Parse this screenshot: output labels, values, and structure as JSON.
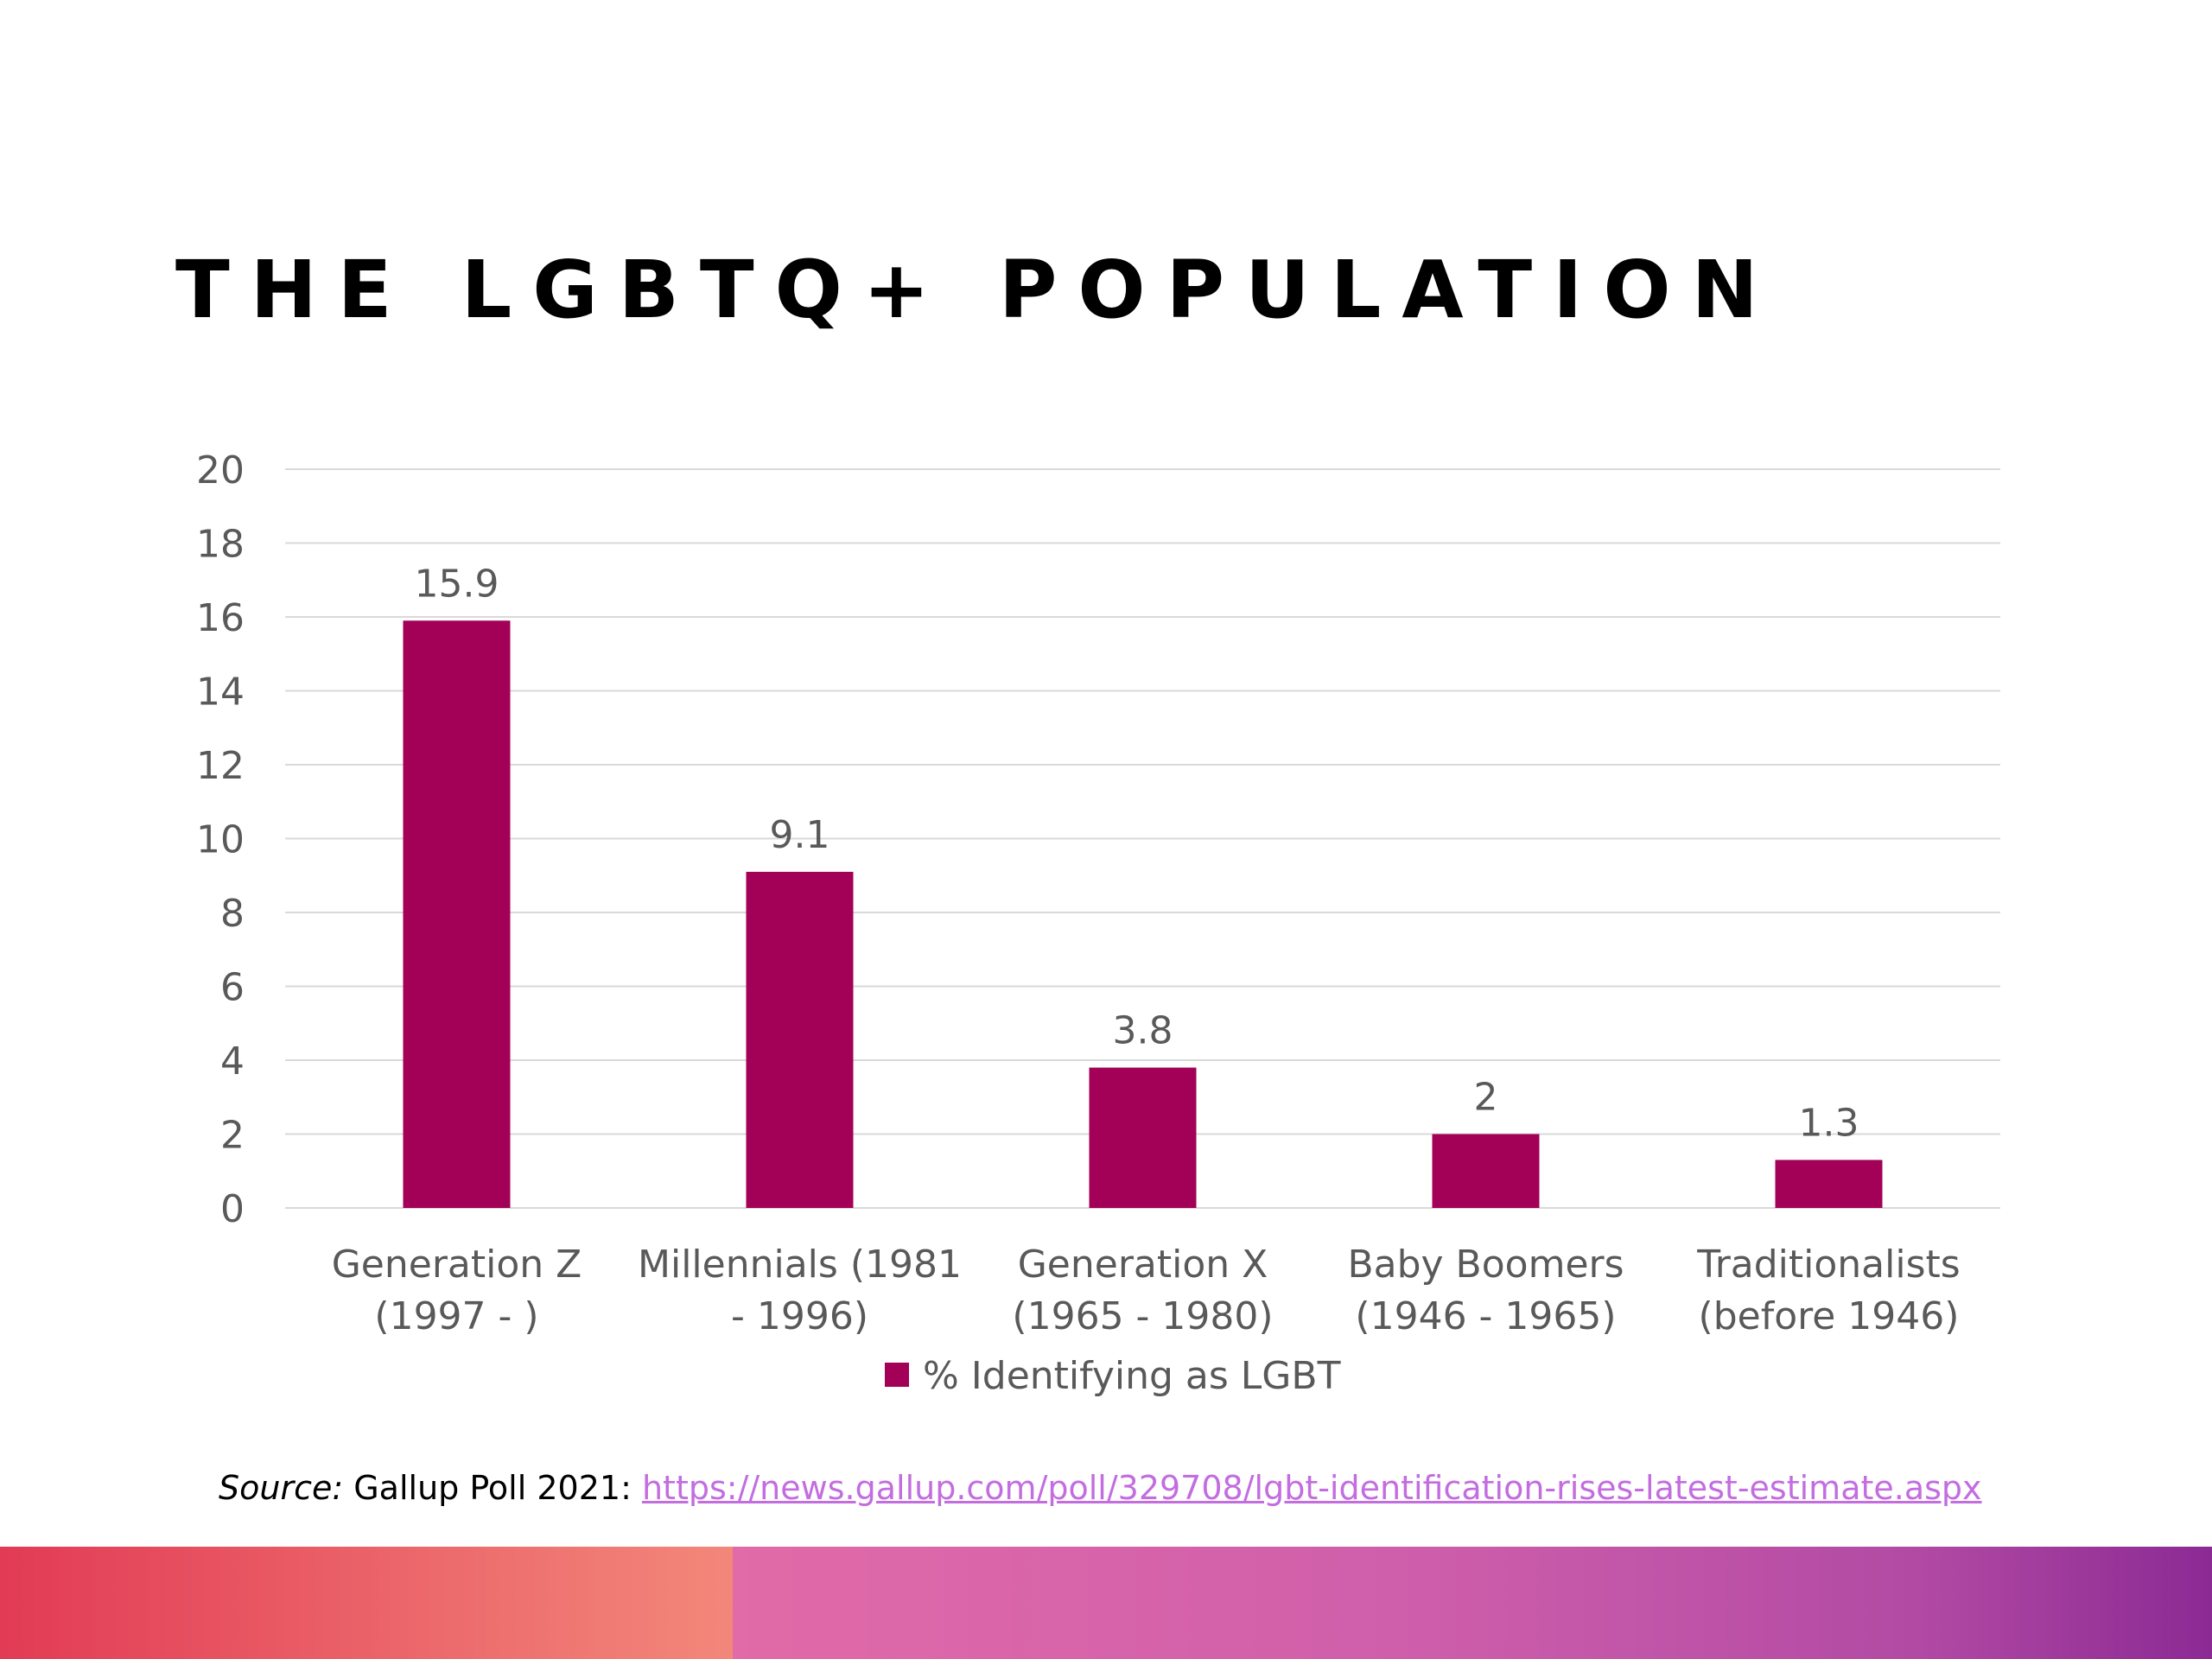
{
  "title": "THE LGBTQ+ POPULATION",
  "source": {
    "label": "Source:",
    "text": " Gallup Poll 2021: ",
    "link": "https://news.gallup.com/poll/329708/lgbt-identification-rises-latest-estimate.aspx"
  },
  "colors": {
    "bar": "#a30057",
    "grid": "#d9d9d9",
    "axis_text": "#595959"
  },
  "chart_data": {
    "type": "bar",
    "title": "",
    "xlabel": "",
    "ylabel": "",
    "ylim": [
      0,
      20
    ],
    "yticks": [
      0,
      2,
      4,
      6,
      8,
      10,
      12,
      14,
      16,
      18,
      20
    ],
    "grid": true,
    "legend_position": "bottom",
    "categories": [
      [
        "Generation Z",
        "(1997 - )"
      ],
      [
        "Millennials (1981",
        "- 1996)"
      ],
      [
        "Generation X",
        "(1965 - 1980)"
      ],
      [
        "Baby Boomers",
        "(1946 - 1965)"
      ],
      [
        "Traditionalists",
        "(before 1946)"
      ]
    ],
    "series": [
      {
        "name": "% Identifying as LGBT",
        "values": [
          15.9,
          9.1,
          3.8,
          2,
          1.3
        ],
        "labels": [
          "15.9",
          "9.1",
          "3.8",
          "2",
          "1.3"
        ]
      }
    ]
  }
}
